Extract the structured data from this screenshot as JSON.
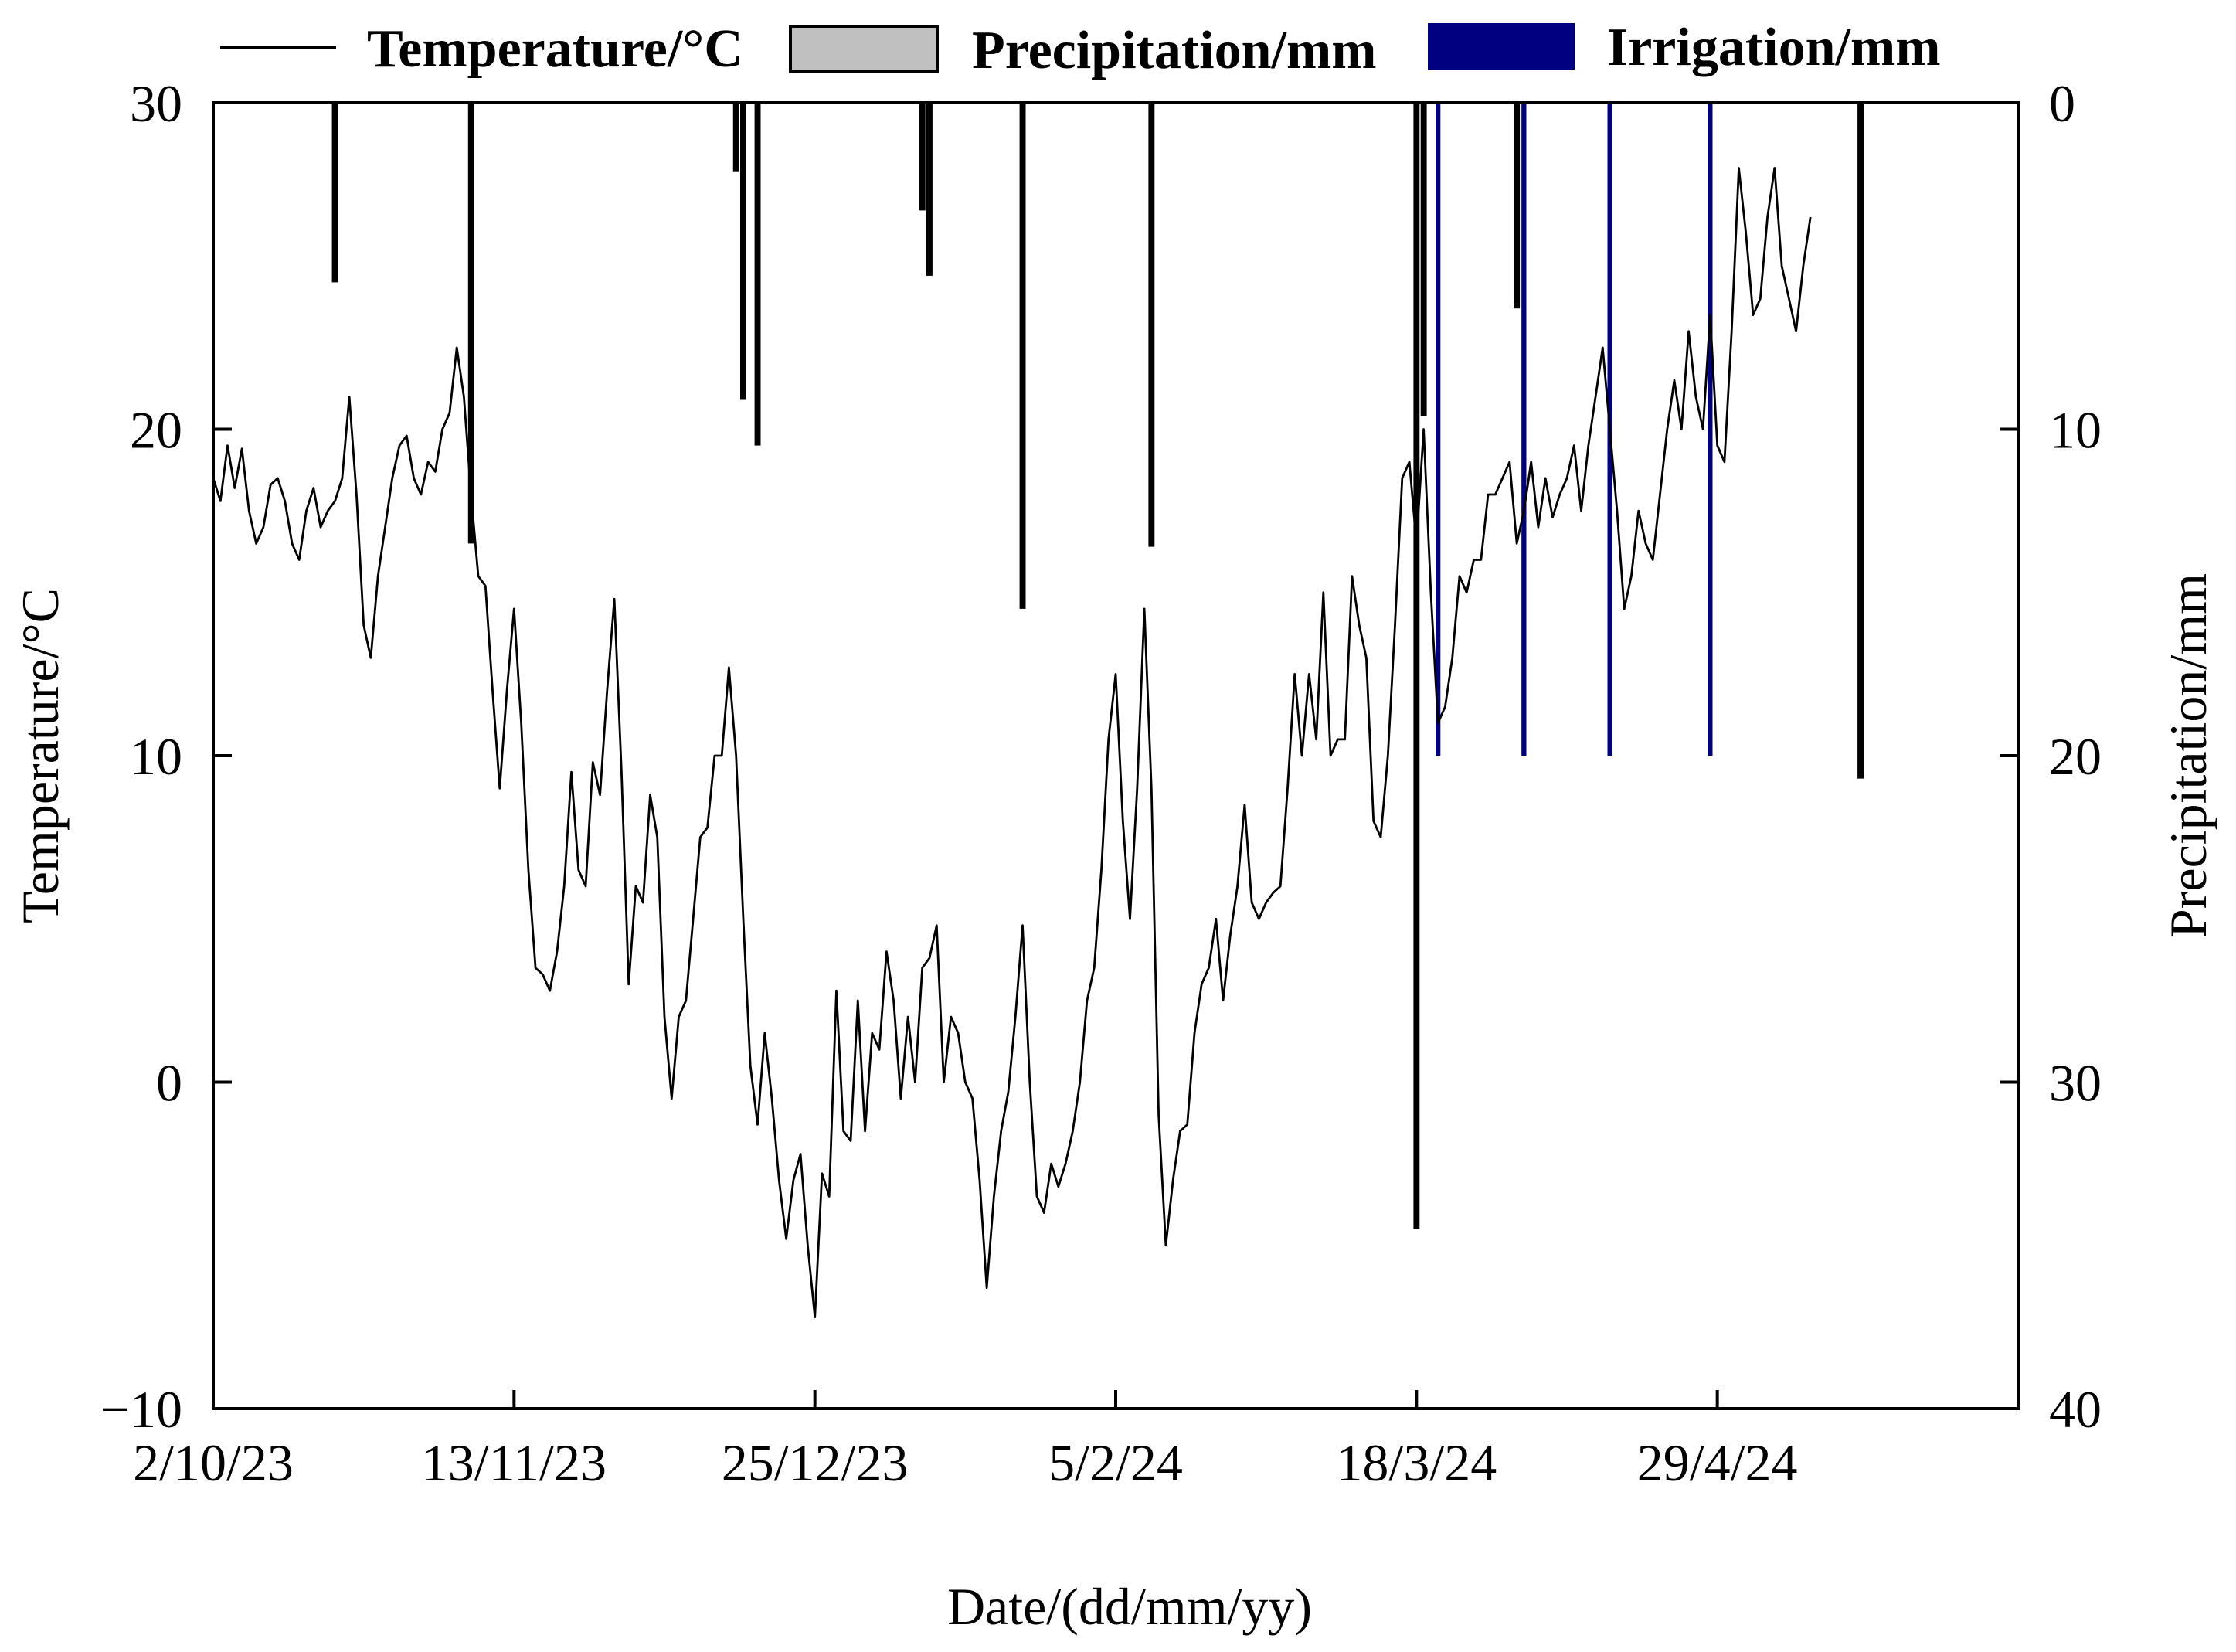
{
  "chart_data": {
    "type": "line",
    "xlabel": "Date/(dd/mm/yy)",
    "ylabel_left": "Temperature/°C",
    "ylabel_right": "Precipitation/mm",
    "x_start": "2023-10-02",
    "x_end": "2024-06-10",
    "x_ticks": [
      "2/10/23",
      "13/11/23",
      "25/12/23",
      "5/2/24",
      "18/3/24",
      "29/4/24"
    ],
    "x_tick_dates": [
      "2023-10-02",
      "2023-11-13",
      "2023-12-25",
      "2024-02-05",
      "2024-03-18",
      "2024-04-29"
    ],
    "ylim_left": [
      -10,
      30
    ],
    "yticks_left": [
      "−10",
      "0",
      "10",
      "20",
      "30"
    ],
    "yticks_left_values": [
      -10,
      0,
      10,
      20,
      30
    ],
    "ylim_right": [
      0,
      40
    ],
    "yticks_right": [
      "0",
      "10",
      "20",
      "30",
      "40"
    ],
    "yticks_right_values": [
      0,
      10,
      20,
      30,
      40
    ],
    "right_axis_inverted": true,
    "grid": false,
    "legend_position": "top",
    "legend": [
      {
        "label": "Temperature/°C",
        "kind": "line",
        "color": "#000000"
      },
      {
        "label": "Precipitation/mm",
        "kind": "patch",
        "color": "#c0c0c0"
      },
      {
        "label": "Irrigation/mm",
        "kind": "patch",
        "color": "#000080"
      }
    ],
    "series": [
      {
        "name": "Temperature/°C",
        "type": "line",
        "color": "#000000",
        "points": [
          [
            "2023-10-02",
            18.5
          ],
          [
            "2023-10-03",
            17.8
          ],
          [
            "2023-10-04",
            19.5
          ],
          [
            "2023-10-05",
            18.2
          ],
          [
            "2023-10-06",
            19.4
          ],
          [
            "2023-10-07",
            17.5
          ],
          [
            "2023-10-08",
            16.5
          ],
          [
            "2023-10-09",
            17.0
          ],
          [
            "2023-10-10",
            18.3
          ],
          [
            "2023-10-11",
            18.5
          ],
          [
            "2023-10-12",
            17.8
          ],
          [
            "2023-10-13",
            16.5
          ],
          [
            "2023-10-14",
            16.0
          ],
          [
            "2023-10-15",
            17.5
          ],
          [
            "2023-10-16",
            18.2
          ],
          [
            "2023-10-17",
            17.0
          ],
          [
            "2023-10-18",
            17.5
          ],
          [
            "2023-10-19",
            17.8
          ],
          [
            "2023-10-20",
            18.5
          ],
          [
            "2023-10-21",
            21.0
          ],
          [
            "2023-10-22",
            18.0
          ],
          [
            "2023-10-23",
            14.0
          ],
          [
            "2023-10-24",
            13.0
          ],
          [
            "2023-10-25",
            15.5
          ],
          [
            "2023-10-26",
            17.0
          ],
          [
            "2023-10-27",
            18.5
          ],
          [
            "2023-10-28",
            19.5
          ],
          [
            "2023-10-29",
            19.8
          ],
          [
            "2023-10-30",
            18.5
          ],
          [
            "2023-10-31",
            18.0
          ],
          [
            "2023-11-01",
            19.0
          ],
          [
            "2023-11-02",
            18.7
          ],
          [
            "2023-11-03",
            20.0
          ],
          [
            "2023-11-04",
            20.5
          ],
          [
            "2023-11-05",
            22.5
          ],
          [
            "2023-11-06",
            21.0
          ],
          [
            "2023-11-07",
            18.0
          ],
          [
            "2023-11-08",
            15.5
          ],
          [
            "2023-11-09",
            15.2
          ],
          [
            "2023-11-10",
            12.0
          ],
          [
            "2023-11-11",
            9.0
          ],
          [
            "2023-11-12",
            12.0
          ],
          [
            "2023-11-13",
            14.5
          ],
          [
            "2023-11-14",
            11.0
          ],
          [
            "2023-11-15",
            6.5
          ],
          [
            "2023-11-16",
            3.5
          ],
          [
            "2023-11-17",
            3.3
          ],
          [
            "2023-11-18",
            2.8
          ],
          [
            "2023-11-19",
            4.0
          ],
          [
            "2023-11-20",
            6.0
          ],
          [
            "2023-11-21",
            9.5
          ],
          [
            "2023-11-22",
            6.5
          ],
          [
            "2023-11-23",
            6.0
          ],
          [
            "2023-11-24",
            9.8
          ],
          [
            "2023-11-25",
            8.8
          ],
          [
            "2023-11-26",
            12.0
          ],
          [
            "2023-11-27",
            14.8
          ],
          [
            "2023-11-28",
            9.5
          ],
          [
            "2023-11-29",
            3.0
          ],
          [
            "2023-11-30",
            6.0
          ],
          [
            "2023-12-01",
            5.5
          ],
          [
            "2023-12-02",
            8.8
          ],
          [
            "2023-12-03",
            7.5
          ],
          [
            "2023-12-04",
            2.0
          ],
          [
            "2023-12-05",
            -0.5
          ],
          [
            "2023-12-06",
            2.0
          ],
          [
            "2023-12-07",
            2.5
          ],
          [
            "2023-12-08",
            5.0
          ],
          [
            "2023-12-09",
            7.5
          ],
          [
            "2023-12-10",
            7.8
          ],
          [
            "2023-12-11",
            10.0
          ],
          [
            "2023-12-12",
            10.0
          ],
          [
            "2023-12-13",
            12.7
          ],
          [
            "2023-12-14",
            10.0
          ],
          [
            "2023-12-15",
            5.0
          ],
          [
            "2023-12-16",
            0.5
          ],
          [
            "2023-12-17",
            -1.3
          ],
          [
            "2023-12-18",
            1.5
          ],
          [
            "2023-12-19",
            -0.5
          ],
          [
            "2023-12-20",
            -3.0
          ],
          [
            "2023-12-21",
            -4.8
          ],
          [
            "2023-12-22",
            -3.0
          ],
          [
            "2023-12-23",
            -2.2
          ],
          [
            "2023-12-24",
            -5.0
          ],
          [
            "2023-12-25",
            -7.2
          ],
          [
            "2023-12-26",
            -2.8
          ],
          [
            "2023-12-27",
            -3.5
          ],
          [
            "2023-12-28",
            2.8
          ],
          [
            "2023-12-29",
            -1.5
          ],
          [
            "2023-12-30",
            -1.8
          ],
          [
            "2023-12-31",
            2.5
          ],
          [
            "2024-01-01",
            -1.5
          ],
          [
            "2024-01-02",
            1.5
          ],
          [
            "2024-01-03",
            1.0
          ],
          [
            "2024-01-04",
            4.0
          ],
          [
            "2024-01-05",
            2.5
          ],
          [
            "2024-01-06",
            -0.5
          ],
          [
            "2024-01-07",
            2.0
          ],
          [
            "2024-01-08",
            0.0
          ],
          [
            "2024-01-09",
            3.5
          ],
          [
            "2024-01-10",
            3.8
          ],
          [
            "2024-01-11",
            4.8
          ],
          [
            "2024-01-12",
            0.0
          ],
          [
            "2024-01-13",
            2.0
          ],
          [
            "2024-01-14",
            1.5
          ],
          [
            "2024-01-15",
            0.0
          ],
          [
            "2024-01-16",
            -0.5
          ],
          [
            "2024-01-17",
            -3.0
          ],
          [
            "2024-01-18",
            -6.3
          ],
          [
            "2024-01-19",
            -3.5
          ],
          [
            "2024-01-20",
            -1.5
          ],
          [
            "2024-01-21",
            -0.3
          ],
          [
            "2024-01-22",
            2.0
          ],
          [
            "2024-01-23",
            4.8
          ],
          [
            "2024-01-24",
            0.0
          ],
          [
            "2024-01-25",
            -3.5
          ],
          [
            "2024-01-26",
            -4.0
          ],
          [
            "2024-01-27",
            -2.5
          ],
          [
            "2024-01-28",
            -3.2
          ],
          [
            "2024-01-29",
            -2.5
          ],
          [
            "2024-01-30",
            -1.5
          ],
          [
            "2024-01-31",
            0.0
          ],
          [
            "2024-02-01",
            2.5
          ],
          [
            "2024-02-02",
            3.5
          ],
          [
            "2024-02-03",
            6.5
          ],
          [
            "2024-02-04",
            10.5
          ],
          [
            "2024-02-05",
            12.5
          ],
          [
            "2024-02-06",
            8.0
          ],
          [
            "2024-02-07",
            5.0
          ],
          [
            "2024-02-08",
            9.0
          ],
          [
            "2024-02-09",
            14.5
          ],
          [
            "2024-02-10",
            9.0
          ],
          [
            "2024-02-11",
            -1.0
          ],
          [
            "2024-02-12",
            -5.0
          ],
          [
            "2024-02-13",
            -3.0
          ],
          [
            "2024-02-14",
            -1.5
          ],
          [
            "2024-02-15",
            -1.3
          ],
          [
            "2024-02-16",
            1.5
          ],
          [
            "2024-02-17",
            3.0
          ],
          [
            "2024-02-18",
            3.5
          ],
          [
            "2024-02-19",
            5.0
          ],
          [
            "2024-02-20",
            2.5
          ],
          [
            "2024-02-21",
            4.5
          ],
          [
            "2024-02-22",
            6.0
          ],
          [
            "2024-02-23",
            8.5
          ],
          [
            "2024-02-24",
            5.5
          ],
          [
            "2024-02-25",
            5.0
          ],
          [
            "2024-02-26",
            5.5
          ],
          [
            "2024-02-27",
            5.8
          ],
          [
            "2024-02-28",
            6.0
          ],
          [
            "2024-02-29",
            9.0
          ],
          [
            "2024-03-01",
            12.5
          ],
          [
            "2024-03-02",
            10.0
          ],
          [
            "2024-03-03",
            12.5
          ],
          [
            "2024-03-04",
            10.5
          ],
          [
            "2024-03-05",
            15.0
          ],
          [
            "2024-03-06",
            10.0
          ],
          [
            "2024-03-07",
            10.5
          ],
          [
            "2024-03-08",
            10.5
          ],
          [
            "2024-03-09",
            15.5
          ],
          [
            "2024-03-10",
            14.0
          ],
          [
            "2024-03-11",
            13.0
          ],
          [
            "2024-03-12",
            8.0
          ],
          [
            "2024-03-13",
            7.5
          ],
          [
            "2024-03-14",
            10.0
          ],
          [
            "2024-03-15",
            14.0
          ],
          [
            "2024-03-16",
            18.5
          ],
          [
            "2024-03-17",
            19.0
          ],
          [
            "2024-03-18",
            16.5
          ],
          [
            "2024-03-19",
            20.0
          ],
          [
            "2024-03-20",
            15.0
          ],
          [
            "2024-03-21",
            11.0
          ],
          [
            "2024-03-22",
            11.5
          ],
          [
            "2024-03-23",
            13.0
          ],
          [
            "2024-03-24",
            15.5
          ],
          [
            "2024-03-25",
            15.0
          ],
          [
            "2024-03-26",
            16.0
          ],
          [
            "2024-03-27",
            16.0
          ],
          [
            "2024-03-28",
            18.0
          ],
          [
            "2024-03-29",
            18.0
          ],
          [
            "2024-03-30",
            18.5
          ],
          [
            "2024-03-31",
            19.0
          ],
          [
            "2024-04-01",
            16.5
          ],
          [
            "2024-04-02",
            17.5
          ],
          [
            "2024-04-03",
            19.0
          ],
          [
            "2024-04-04",
            17.0
          ],
          [
            "2024-04-05",
            18.5
          ],
          [
            "2024-04-06",
            17.3
          ],
          [
            "2024-04-07",
            18.0
          ],
          [
            "2024-04-08",
            18.5
          ],
          [
            "2024-04-09",
            19.5
          ],
          [
            "2024-04-10",
            17.5
          ],
          [
            "2024-04-11",
            19.5
          ],
          [
            "2024-04-12",
            21.0
          ],
          [
            "2024-04-13",
            22.5
          ],
          [
            "2024-04-14",
            20.0
          ],
          [
            "2024-04-15",
            17.5
          ],
          [
            "2024-04-16",
            14.5
          ],
          [
            "2024-04-17",
            15.5
          ],
          [
            "2024-04-18",
            17.5
          ],
          [
            "2024-04-19",
            16.5
          ],
          [
            "2024-04-20",
            16.0
          ],
          [
            "2024-04-21",
            18.0
          ],
          [
            "2024-04-22",
            20.0
          ],
          [
            "2024-04-23",
            21.5
          ],
          [
            "2024-04-24",
            20.0
          ],
          [
            "2024-04-25",
            23.0
          ],
          [
            "2024-04-26",
            21.0
          ],
          [
            "2024-04-27",
            20.0
          ],
          [
            "2024-04-28",
            23.5
          ],
          [
            "2024-04-29",
            19.5
          ],
          [
            "2024-04-30",
            19.0
          ],
          [
            "2024-05-01",
            23.0
          ],
          [
            "2024-05-02",
            28.0
          ],
          [
            "2024-05-03",
            26.0
          ],
          [
            "2024-05-04",
            23.5
          ],
          [
            "2024-05-05",
            24.0
          ],
          [
            "2024-05-06",
            26.5
          ],
          [
            "2024-05-07",
            28.0
          ],
          [
            "2024-05-08",
            25.0
          ],
          [
            "2024-05-09",
            24.0
          ],
          [
            "2024-05-10",
            23.0
          ],
          [
            "2024-05-11",
            25.0
          ],
          [
            "2024-05-12",
            26.5
          ]
        ]
      },
      {
        "name": "Precipitation/mm",
        "type": "bar",
        "axis": "right",
        "color": "#000000",
        "points": [
          [
            "2023-10-19",
            5.5
          ],
          [
            "2023-11-07",
            13.5
          ],
          [
            "2023-12-14",
            2.1
          ],
          [
            "2023-12-15",
            9.1
          ],
          [
            "2023-12-17",
            10.5
          ],
          [
            "2024-01-09",
            3.3
          ],
          [
            "2024-01-10",
            5.3
          ],
          [
            "2024-01-23",
            15.5
          ],
          [
            "2024-02-10",
            13.6
          ],
          [
            "2024-03-18",
            34.5
          ],
          [
            "2024-03-19",
            9.6
          ],
          [
            "2024-04-01",
            6.3
          ],
          [
            "2024-05-19",
            20.7
          ]
        ]
      },
      {
        "name": "Irrigation/mm",
        "type": "bar",
        "axis": "right",
        "color": "#000080",
        "points": [
          [
            "2024-03-21",
            20.0
          ],
          [
            "2024-04-02",
            20.0
          ],
          [
            "2024-04-14",
            20.0
          ],
          [
            "2024-04-28",
            20.0
          ]
        ]
      }
    ]
  }
}
